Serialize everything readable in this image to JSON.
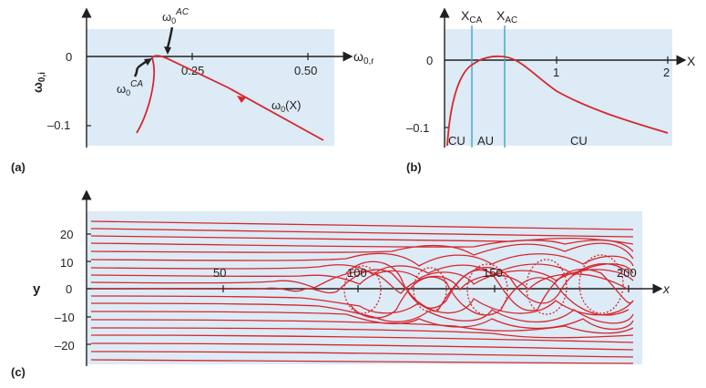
{
  "colors": {
    "background_panel": "#dcebf5",
    "curve": "#d7262e",
    "axis": "#231f20",
    "boundary_line": "#3fa6c4"
  },
  "panel_a": {
    "label": "(a)",
    "y_axis_label": "ω0,i",
    "x_axis_label": "ω0,r",
    "y_ticks": [
      "0",
      "–0.1"
    ],
    "x_ticks": [
      "0.25",
      "0.50"
    ],
    "annotation_ac": "ω0AC",
    "annotation_ca": "ω0CA",
    "curve_label": "ω0(X)"
  },
  "panel_b": {
    "label": "(b)",
    "x_axis_label": "X",
    "y_ticks": [
      "0",
      "–0.1"
    ],
    "x_ticks": [
      "1",
      "2"
    ],
    "boundary_ca": "XCA",
    "boundary_ac": "XAC",
    "regions": [
      "CU",
      "AU",
      "CU"
    ]
  },
  "panel_c": {
    "label": "(c)",
    "y_axis_label": "y",
    "x_axis_label": "x",
    "y_ticks": [
      "20",
      "10",
      "0",
      "–10",
      "–20"
    ],
    "x_ticks": [
      "50",
      "100",
      "150",
      "200"
    ]
  }
}
